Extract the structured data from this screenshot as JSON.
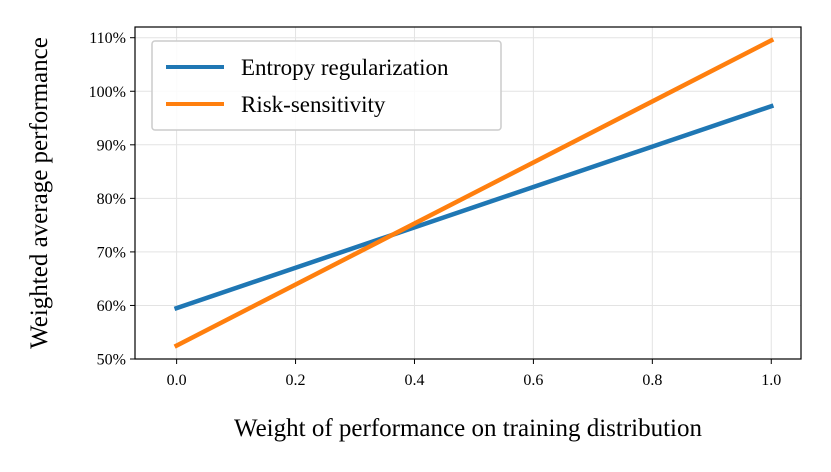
{
  "chart_data": {
    "type": "line",
    "title": "",
    "xlabel": "Weight of performance on training distribution",
    "ylabel": "Weighted average performance",
    "xlim": [
      -0.07,
      1.05
    ],
    "ylim": [
      50,
      112
    ],
    "x_ticks": [
      0.0,
      0.2,
      0.4,
      0.6,
      0.8,
      1.0
    ],
    "x_tick_labels": [
      "0.0",
      "0.2",
      "0.4",
      "0.6",
      "0.8",
      "1.0"
    ],
    "y_ticks": [
      50,
      60,
      70,
      80,
      90,
      100,
      110
    ],
    "y_tick_labels": [
      "50%",
      "60%",
      "70%",
      "80%",
      "90%",
      "100%",
      "110%"
    ],
    "grid": true,
    "legend_position": "top-left",
    "series": [
      {
        "name": "Entropy regularization",
        "color": "#1f77b4",
        "x": [
          0.0,
          1.0
        ],
        "values": [
          59.5,
          97.2
        ]
      },
      {
        "name": "Risk-sensitivity",
        "color": "#ff7f0e",
        "x": [
          0.0,
          1.0
        ],
        "values": [
          52.5,
          109.5
        ]
      }
    ]
  }
}
